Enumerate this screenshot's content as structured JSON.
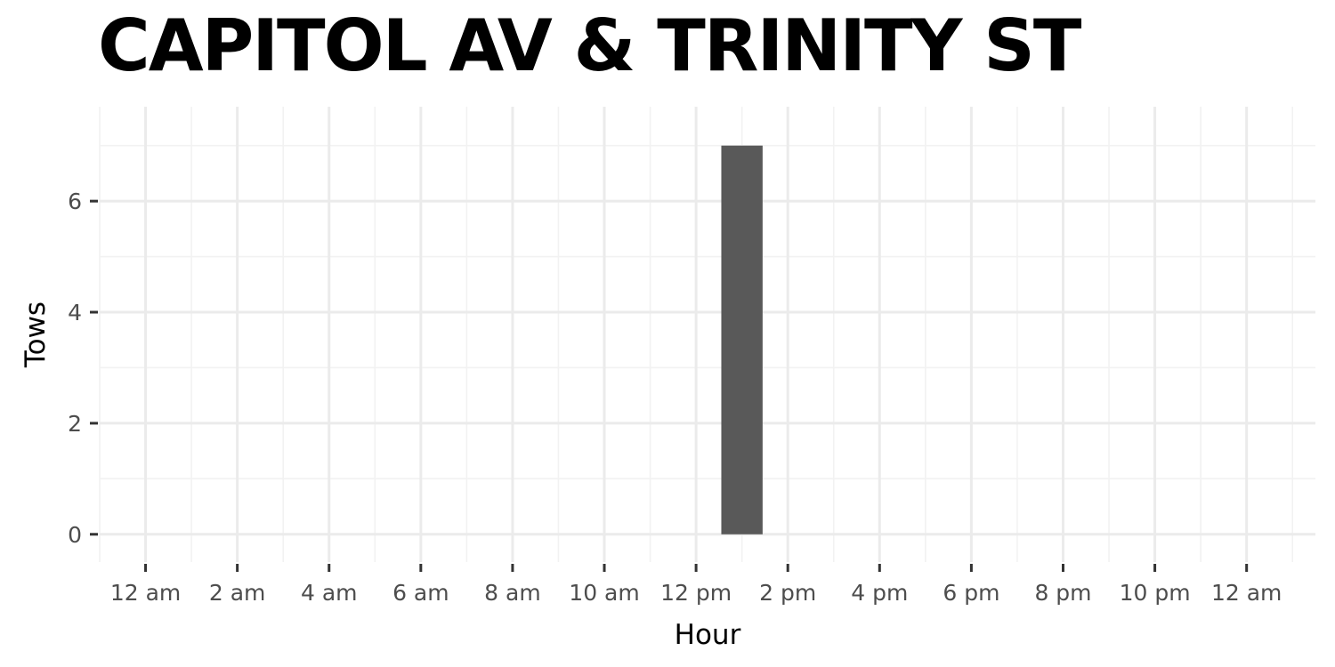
{
  "chart_data": {
    "type": "bar",
    "title": "CAPITOL AV & TRINITY ST",
    "xlabel": "Hour",
    "ylabel": "Tows",
    "x_ticks": [
      "12 am",
      "2 am",
      "4 am",
      "6 am",
      "8 am",
      "10 am",
      "12 pm",
      "2 pm",
      "4 pm",
      "6 pm",
      "8 pm",
      "10 pm",
      "12 am"
    ],
    "x_tick_hours": [
      0,
      2,
      4,
      6,
      8,
      10,
      12,
      14,
      16,
      18,
      20,
      22,
      24
    ],
    "y_ticks": [
      0,
      2,
      4,
      6
    ],
    "xlim": [
      -1,
      25.5
    ],
    "ylim": [
      -0.5,
      7.7
    ],
    "grid": true,
    "bars": [
      {
        "hour": 13,
        "value": 7
      }
    ],
    "colors": {
      "bar": "#595959",
      "grid_major": "#ebebeb",
      "grid_minor": "#f2f2f2",
      "tick_mark": "#333333",
      "tick_text": "#4d4d4d"
    }
  }
}
